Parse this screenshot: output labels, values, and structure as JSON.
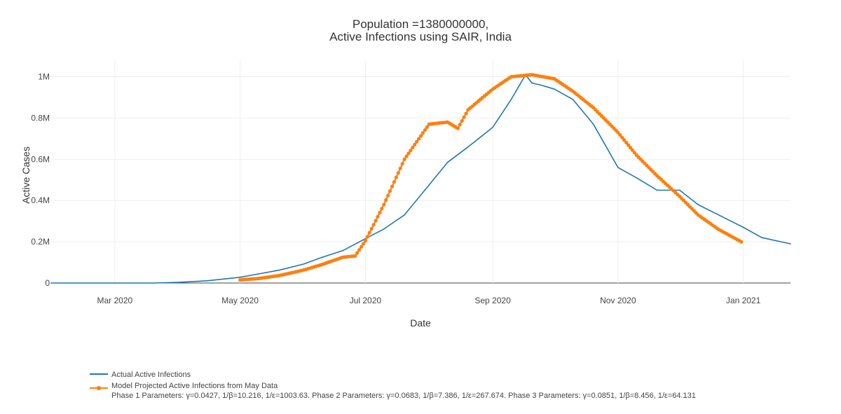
{
  "chart_data": {
    "type": "line",
    "title_lines": [
      "Population =1380000000,",
      "Active Infections using SAIR, India"
    ],
    "xlabel": "Date",
    "ylabel": "Active Cases",
    "x_range": [
      "2020-01-30",
      "2021-01-24"
    ],
    "ylim": [
      0,
      1080000
    ],
    "grid": true,
    "legend_position": "bottom-left",
    "x_ticks": [
      {
        "date": "2020-03-01",
        "label": "Mar 2020"
      },
      {
        "date": "2020-05-01",
        "label": "May 2020"
      },
      {
        "date": "2020-07-01",
        "label": "Jul 2020"
      },
      {
        "date": "2020-09-01",
        "label": "Sep 2020"
      },
      {
        "date": "2020-11-01",
        "label": "Nov 2020"
      },
      {
        "date": "2021-01-01",
        "label": "Jan 2021"
      }
    ],
    "y_ticks": [
      {
        "value": 0,
        "label": "0"
      },
      {
        "value": 200000,
        "label": "0.2M"
      },
      {
        "value": 400000,
        "label": "0.4M"
      },
      {
        "value": 600000,
        "label": "0.6M"
      },
      {
        "value": 800000,
        "label": "0.8M"
      },
      {
        "value": 1000000,
        "label": "1M"
      }
    ],
    "series": [
      {
        "name": "Actual Active Infections",
        "color": "#1f77b4",
        "mode": "lines",
        "x": [
          "2020-01-30",
          "2020-03-01",
          "2020-03-20",
          "2020-04-01",
          "2020-04-15",
          "2020-05-01",
          "2020-05-10",
          "2020-05-20",
          "2020-06-01",
          "2020-06-10",
          "2020-06-20",
          "2020-07-01",
          "2020-07-10",
          "2020-07-20",
          "2020-08-01",
          "2020-08-10",
          "2020-08-20",
          "2020-09-01",
          "2020-09-10",
          "2020-09-17",
          "2020-09-20",
          "2020-09-25",
          "2020-10-01",
          "2020-10-10",
          "2020-10-20",
          "2020-11-01",
          "2020-11-10",
          "2020-11-20",
          "2020-11-25",
          "2020-12-01",
          "2020-12-10",
          "2020-12-20",
          "2021-01-01",
          "2021-01-10",
          "2021-01-24"
        ],
        "y": [
          0,
          0,
          0,
          3000,
          11000,
          28000,
          44000,
          62000,
          92000,
          125000,
          157000,
          215000,
          262000,
          330000,
          475000,
          585000,
          660000,
          755000,
          890000,
          1010000,
          970000,
          958000,
          940000,
          890000,
          770000,
          560000,
          510000,
          450000,
          450000,
          450000,
          380000,
          330000,
          270000,
          220000,
          190000
        ]
      },
      {
        "name": "Model Projected Active Infections from May Data",
        "color": "#ff7f0e",
        "mode": "lines+markers",
        "x": [
          "2020-05-01",
          "2020-05-10",
          "2020-05-20",
          "2020-06-01",
          "2020-06-10",
          "2020-06-20",
          "2020-06-26",
          "2020-07-01",
          "2020-07-10",
          "2020-07-20",
          "2020-08-01",
          "2020-08-10",
          "2020-08-15",
          "2020-08-20",
          "2020-09-01",
          "2020-09-10",
          "2020-09-20",
          "2020-10-01",
          "2020-10-10",
          "2020-10-20",
          "2020-11-01",
          "2020-11-10",
          "2020-11-20",
          "2020-12-01",
          "2020-12-10",
          "2020-12-20",
          "2020-12-31"
        ],
        "y": [
          15000,
          22000,
          36000,
          63000,
          90000,
          125000,
          131000,
          205000,
          380000,
          600000,
          770000,
          780000,
          750000,
          840000,
          940000,
          1000000,
          1010000,
          990000,
          930000,
          850000,
          730000,
          620000,
          520000,
          420000,
          330000,
          260000,
          200000
        ]
      }
    ],
    "legend_entries": [
      "Actual Active Infections",
      "Model Projected Active Infections from May Data"
    ],
    "legend_note": "Phase 1 Parameters:  γ=0.0427, 1/β=10.216, 1/ε=1003.63. Phase 2 Parameters:  γ=0.0683, 1/β=7.386, 1/ε=267.674. Phase 3 Parameters:  γ=0.0851, 1/β=8.456, 1/ε=64.131"
  }
}
